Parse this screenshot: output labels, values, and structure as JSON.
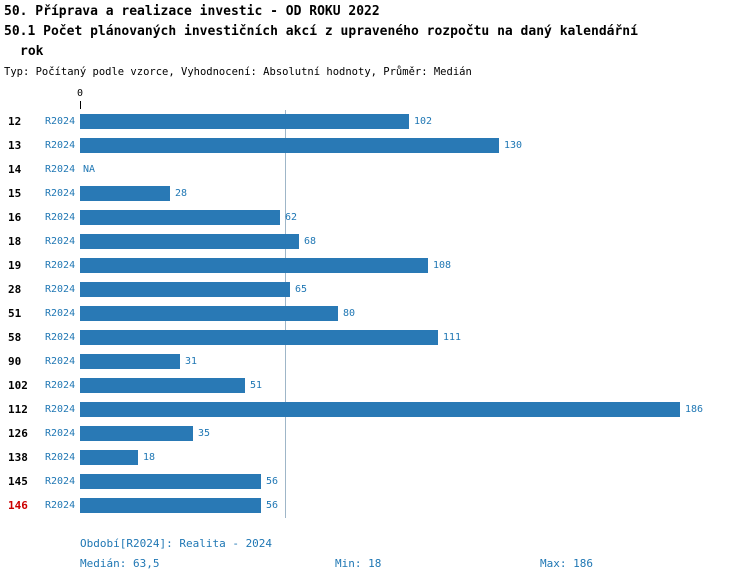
{
  "header": {
    "title_line1": "50. Příprava a realizace investic - OD ROKU 2022",
    "title_line2": "50.1 Počet plánovaných investičních akcí z upraveného rozpočtu na daný kalendářní",
    "title_line3": "rok",
    "subtitle": "Typ: Počítaný podle vzorce, Vyhodnocení: Absolutní hodnoty, Průměr: Medián"
  },
  "chart_data": {
    "type": "bar",
    "orientation": "horizontal",
    "title": "50. Příprava a realizace investic - OD ROKU 2022",
    "subtitle": "50.1 Počet plánovaných investičních akcí z upraveného rozpočtu na daný kalendářní rok",
    "axis_zero_label": "0",
    "xlim": [
      0,
      186
    ],
    "median_line": 63.5,
    "na_label": "NA",
    "series_label": "R2024",
    "grid": false,
    "rows": [
      {
        "id": "12",
        "period": "R2024",
        "value": 102
      },
      {
        "id": "13",
        "period": "R2024",
        "value": 130
      },
      {
        "id": "14",
        "period": "R2024",
        "value": null
      },
      {
        "id": "15",
        "period": "R2024",
        "value": 28
      },
      {
        "id": "16",
        "period": "R2024",
        "value": 62
      },
      {
        "id": "18",
        "period": "R2024",
        "value": 68
      },
      {
        "id": "19",
        "period": "R2024",
        "value": 108
      },
      {
        "id": "28",
        "period": "R2024",
        "value": 65
      },
      {
        "id": "51",
        "period": "R2024",
        "value": 80
      },
      {
        "id": "58",
        "period": "R2024",
        "value": 111
      },
      {
        "id": "90",
        "period": "R2024",
        "value": 31
      },
      {
        "id": "102",
        "period": "R2024",
        "value": 51
      },
      {
        "id": "112",
        "period": "R2024",
        "value": 186
      },
      {
        "id": "126",
        "period": "R2024",
        "value": 35
      },
      {
        "id": "138",
        "period": "R2024",
        "value": 18
      },
      {
        "id": "145",
        "period": "R2024",
        "value": 56
      },
      {
        "id": "146",
        "period": "R2024",
        "value": 56,
        "highlight": true
      }
    ]
  },
  "footer": {
    "period": "Období[R2024]: Realita - 2024",
    "median": "Medián: 63,5",
    "min": "Min: 18",
    "max": "Max: 186"
  },
  "colors": {
    "bar": "#2979B5",
    "text_blue": "#1F77B4",
    "highlight": "#CC0000",
    "median_line": "#9FB6C8"
  }
}
